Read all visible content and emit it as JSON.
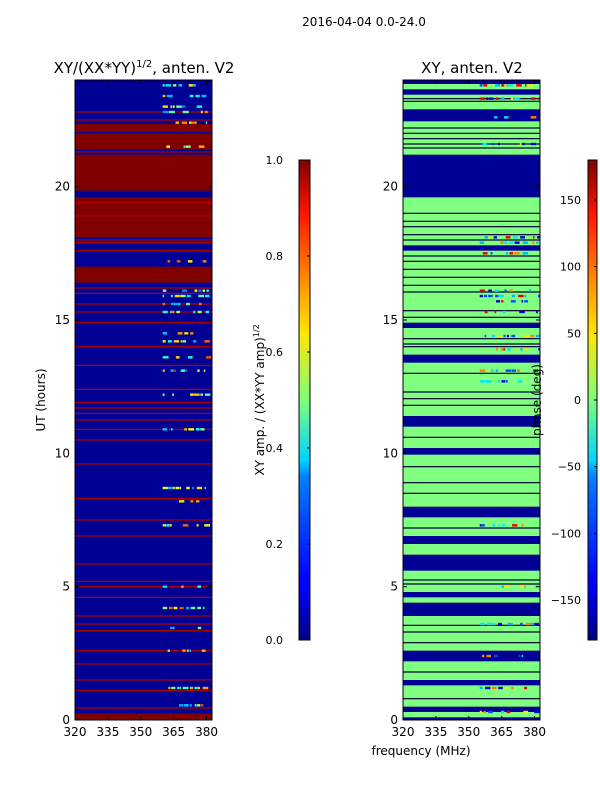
{
  "suptitle": "2016-04-04 0.0-24.0",
  "chart_data": [
    {
      "type": "heatmap",
      "title": "XY/(XX*YY)^{1/2}, anten. V2",
      "title_main": "XY/(XX*YY)",
      "title_sup": "1/2",
      "title_tail": ", anten. V2",
      "xlabel": "",
      "ylabel": "UT (hours)",
      "xlim": [
        320,
        382.5
      ],
      "ylim": [
        0,
        24
      ],
      "xticks": [
        320,
        335,
        350,
        365,
        380
      ],
      "yticks": [
        0,
        5,
        10,
        15,
        20
      ],
      "colormap": "jet",
      "background_value": 0.02,
      "saturated_bands": [
        [
          0.0,
          0.25
        ],
        [
          16.4,
          17.0
        ],
        [
          18.1,
          19.6
        ],
        [
          19.85,
          21.2
        ],
        [
          21.4,
          22.0
        ],
        [
          22.05,
          22.35
        ]
      ],
      "saturated_value": 1.0,
      "flagged_rows": [
        0.45,
        1.1,
        1.5,
        2.1,
        2.6,
        3.35,
        3.6,
        3.9,
        4.6,
        5.0,
        5.2,
        5.85,
        6.9,
        7.5,
        8.3,
        9.6,
        10.5,
        10.9,
        11.25,
        11.5,
        11.7,
        11.9,
        12.4,
        13.3,
        14.0,
        14.9,
        15.3,
        15.6,
        16.0,
        16.2,
        17.6,
        17.9,
        18.0,
        18.9,
        19.4,
        21.3,
        22.5,
        22.8
      ],
      "bright_region": {
        "x_range": [
          360,
          380
        ],
        "rows": [
          0.55,
          1.2,
          2.6,
          3.45,
          4.2,
          5.0,
          7.3,
          8.2,
          8.7,
          10.9,
          12.2,
          13.1,
          13.6,
          14.2,
          14.5,
          15.3,
          15.6,
          15.9,
          16.1,
          17.2,
          21.5,
          22.4,
          22.8,
          23.0,
          23.4,
          23.8
        ]
      }
    },
    {
      "type": "heatmap",
      "title": "XY, anten. V2",
      "xlabel": "frequency (MHz)",
      "ylabel": "",
      "xlim": [
        320,
        382.5
      ],
      "ylim": [
        0,
        24
      ],
      "xticks": [
        320,
        335,
        350,
        365,
        380
      ],
      "yticks": [
        0,
        5,
        10,
        15,
        20
      ],
      "colormap": "jet",
      "background_value": 0,
      "dark_bands": [
        [
          0.0,
          0.1
        ],
        [
          0.3,
          0.5
        ],
        [
          1.3,
          1.5
        ],
        [
          2.2,
          2.6
        ],
        [
          3.9,
          4.4
        ],
        [
          4.6,
          4.8
        ],
        [
          5.6,
          6.2
        ],
        [
          6.6,
          6.9
        ],
        [
          7.6,
          8.0
        ],
        [
          9.95,
          10.2
        ],
        [
          11.0,
          11.4
        ],
        [
          13.4,
          13.7
        ],
        [
          14.7,
          14.9
        ],
        [
          17.6,
          17.8
        ],
        [
          19.6,
          21.2
        ],
        [
          22.45,
          22.9
        ],
        [
          23.45,
          23.65
        ],
        [
          23.85,
          24.0
        ]
      ],
      "dark_lines": [
        0.8,
        1.8,
        2.9,
        3.3,
        3.55,
        5.1,
        5.25,
        7.2,
        8.5,
        8.9,
        9.5,
        10.6,
        11.8,
        12.05,
        12.3,
        13.0,
        14.0,
        14.1,
        14.3,
        15.1,
        15.35,
        16.05,
        16.3,
        16.6,
        16.9,
        17.2,
        17.4,
        18.0,
        18.2,
        18.5,
        18.7,
        19.0,
        21.45,
        21.6,
        21.8,
        22.0,
        22.2,
        23.2,
        23.3
      ],
      "speckle_region": {
        "x_range": [
          355,
          382
        ],
        "rows": [
          0.3,
          1.2,
          2.4,
          3.6,
          5.0,
          7.3,
          12.7,
          13.1,
          13.9,
          14.4,
          15.3,
          15.7,
          15.9,
          16.1,
          17.5,
          17.9,
          18.1,
          21.6,
          22.6,
          23.3,
          23.8
        ]
      }
    }
  ],
  "colorbars": [
    {
      "label": "XY amp. / (XX*YY amp)^{1/2}",
      "label_main": "XY amp. / (XX*YY amp)",
      "label_sup": "1/2",
      "range": [
        0.0,
        1.0
      ],
      "ticks": [
        "0.0",
        "0.2",
        "0.4",
        "0.6",
        "0.8",
        "1.0"
      ],
      "tick_values": [
        0.0,
        0.2,
        0.4,
        0.6,
        0.8,
        1.0
      ]
    },
    {
      "label": "phase (deg)",
      "range": [
        -180,
        180
      ],
      "ticks": [
        "−150",
        "−100",
        "−50",
        "0",
        "50",
        "100",
        "150"
      ],
      "tick_values": [
        -150,
        -100,
        -50,
        0,
        50,
        100,
        150
      ]
    }
  ]
}
